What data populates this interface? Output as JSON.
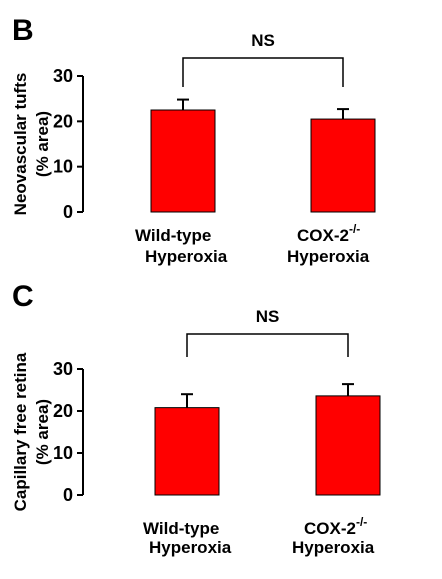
{
  "chart_data": [
    {
      "panel": "B",
      "type": "bar",
      "categories": [
        "Wild-type Hyperoxia",
        "COX-2-/- Hyperoxia"
      ],
      "category_lines": [
        [
          "Wild-type",
          "Hyperoxia"
        ],
        [
          "COX-2",
          "-/-",
          "Hyperoxia"
        ]
      ],
      "values": [
        22.5,
        20.5
      ],
      "errors": [
        2.3,
        2.2
      ],
      "ylabel_lines": [
        "Neovascular tufts",
        "(% area)"
      ],
      "yticks": [
        0,
        10,
        20,
        30
      ],
      "ylim": [
        0,
        30
      ],
      "significance": "NS",
      "bar_color": "#ff0000",
      "grid": false
    },
    {
      "panel": "C",
      "type": "bar",
      "categories": [
        "Wild-type Hyperoxia",
        "COX-2-/- Hyperoxia"
      ],
      "category_lines": [
        [
          "Wild-type",
          "Hyperoxia"
        ],
        [
          "COX-2",
          "-/-",
          "Hyperoxia"
        ]
      ],
      "values": [
        20.8,
        23.6
      ],
      "errors": [
        3.2,
        2.8
      ],
      "ylabel_lines": [
        "Capillary free retina",
        "(% area)"
      ],
      "yticks": [
        0,
        10,
        20,
        30
      ],
      "ylim": [
        0,
        30
      ],
      "significance": "NS",
      "bar_color": "#ff0000",
      "grid": false
    }
  ]
}
